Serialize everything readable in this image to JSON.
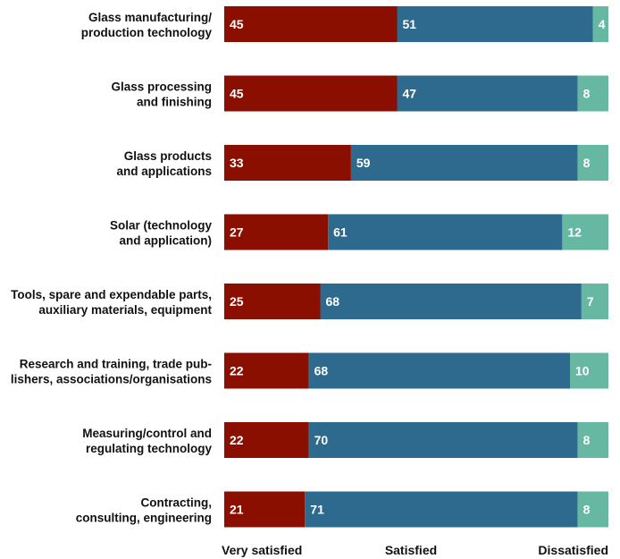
{
  "chart_data": {
    "type": "bar",
    "orientation": "horizontal",
    "stacked": true,
    "categories": [
      [
        "Glass manufacturing/",
        "production technology"
      ],
      [
        "Glass processing",
        "and finishing"
      ],
      [
        "Glass products",
        "and applications"
      ],
      [
        "Solar (technology",
        "and application)"
      ],
      [
        "Tools, spare and expendable parts,",
        "auxiliary materials, equipment"
      ],
      [
        "Research and training, trade pub-",
        "lishers, associations/organisations"
      ],
      [
        "Measuring/control and",
        "regulating technology"
      ],
      [
        "Contracting,",
        "consulting, engineering"
      ]
    ],
    "series": [
      {
        "name": "Very satisfied",
        "color": "#8b0f00",
        "values": [
          45,
          45,
          33,
          27,
          25,
          22,
          22,
          21
        ]
      },
      {
        "name": "Satisfied",
        "color": "#2e6a8e",
        "values": [
          51,
          47,
          59,
          61,
          68,
          68,
          70,
          71
        ]
      },
      {
        "name": "Dissatisfied",
        "color": "#66b8a3",
        "values": [
          4,
          8,
          8,
          12,
          7,
          10,
          8,
          8
        ]
      }
    ],
    "xlim": [
      0,
      100
    ],
    "legend_position": "bottom"
  }
}
